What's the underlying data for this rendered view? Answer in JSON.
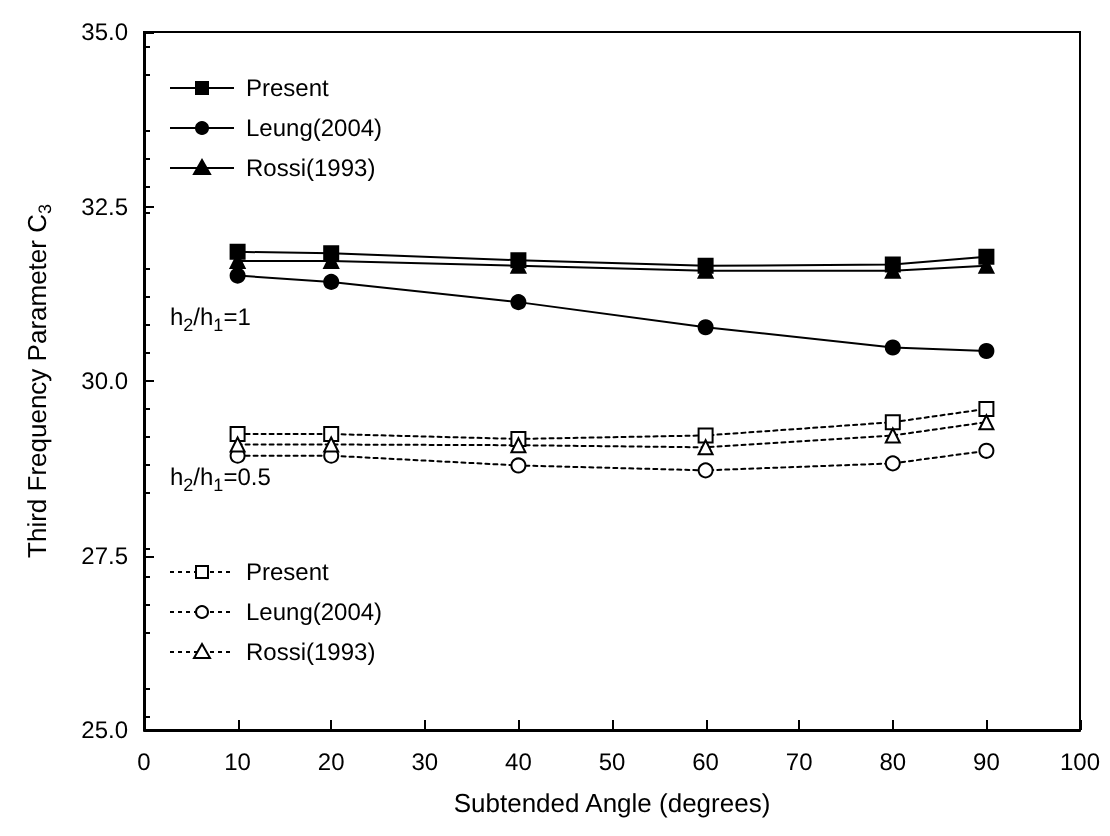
{
  "chart_data": {
    "type": "line",
    "xlabel": "Subtended Angle (degrees)",
    "ylabel": "Third Frequency Parameter C$_{3}$",
    "x": [
      10,
      20,
      40,
      60,
      80,
      90
    ],
    "series": [
      {
        "name": "Present",
        "color": "#000000",
        "marker": "square",
        "line_style": "solid",
        "values": [
          31.85,
          31.83,
          31.73,
          31.65,
          31.67,
          31.78
        ]
      },
      {
        "name": "Leung(2004)",
        "color": "#000000",
        "marker": "circle",
        "line_style": "solid",
        "values": [
          31.51,
          31.42,
          31.13,
          30.77,
          30.48,
          30.43
        ]
      },
      {
        "name": "Rossi(1993)",
        "color": "#000000",
        "marker": "triangle",
        "line_style": "solid",
        "values": [
          31.72,
          31.72,
          31.65,
          31.58,
          31.58,
          31.65
        ]
      },
      {
        "name": "Present",
        "color": "#000000",
        "marker": "square",
        "line_style": "dotted",
        "values": [
          29.24,
          29.24,
          29.17,
          29.22,
          29.41,
          29.6
        ]
      },
      {
        "name": "Leung(2004)",
        "color": "#000000",
        "marker": "circle",
        "line_style": "dotted",
        "values": [
          28.93,
          28.93,
          28.79,
          28.72,
          28.82,
          29.0
        ]
      },
      {
        "name": "Rossi(1993)",
        "color": "#000000",
        "marker": "triangle",
        "line_style": "dotted",
        "values": [
          29.09,
          29.09,
          29.08,
          29.05,
          29.22,
          29.41
        ]
      }
    ],
    "annotations": [
      "h$_{2}$/h$_{1}$=1",
      "h$_{2}$/h$_{1}$=0.5"
    ],
    "xlim": [
      0,
      100
    ],
    "xticks": [
      0,
      10,
      20,
      30,
      40,
      50,
      60,
      70,
      80,
      90,
      100
    ],
    "ylim": [
      25,
      35
    ],
    "yticks": [
      {
        "value": 25,
        "label": "25.0"
      },
      {
        "value": 27.5,
        "label": "27.5"
      },
      {
        "value": 30,
        "label": "30.0"
      },
      {
        "value": 32.5,
        "label": "32.5"
      },
      {
        "value": 35,
        "label": "35.0"
      }
    ],
    "legend": "left",
    "grid": false
  }
}
